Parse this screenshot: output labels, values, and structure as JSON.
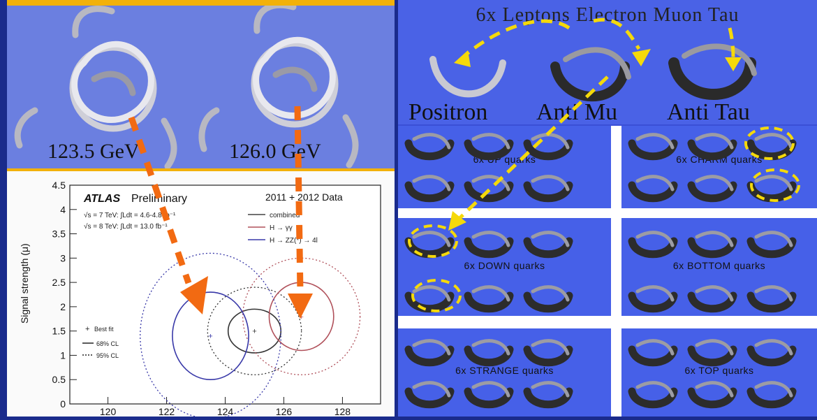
{
  "left_top": {
    "mass_left": "123.5 GeV",
    "mass_right": "126.0 GeV"
  },
  "plot": {
    "experiment": "ATLAS",
    "status": "Preliminary",
    "data_label": "2011 + 2012 Data",
    "lumi_line1_prefix": "√s = 7 TeV: ∫Ldt = ",
    "lumi_line1_value": "4.6-4.8 fb⁻¹",
    "lumi_line2_prefix": "√s = 8 TeV: ∫Ldt = ",
    "lumi_line2_value": "13.0 fb⁻¹",
    "legend_combined": "combined",
    "legend_gg": "H → γγ",
    "legend_zz": "H → ZZ(*) → 4l",
    "legend_bestfit": "Best fit",
    "legend_68": "68% CL",
    "legend_95": "95% CL",
    "ylabel": "Signal strength (μ)"
  },
  "chart_data": {
    "type": "scatter",
    "title": "",
    "xlabel": "",
    "ylabel": "Signal strength (μ)",
    "xlim": [
      118.7,
      129.3
    ],
    "ylim": [
      0,
      4.5
    ],
    "x_ticks": [
      120,
      122,
      124,
      126,
      128
    ],
    "y_ticks": [
      0,
      0.5,
      1,
      1.5,
      2,
      2.5,
      3,
      3.5,
      4,
      4.5
    ],
    "series": [
      {
        "name": "combined",
        "best_fit": [
          125.0,
          1.5
        ],
        "color": "#333333"
      },
      {
        "name": "H → γγ",
        "best_fit": [
          126.6,
          1.8
        ],
        "color": "#b0505a"
      },
      {
        "name": "H → ZZ(*) → 4l",
        "best_fit": [
          123.5,
          1.4
        ],
        "color": "#3838a8"
      }
    ],
    "grid": false,
    "legend": "top-right"
  },
  "right": {
    "banner": "6x Leptons Electron Muon Tau",
    "positron": "Positron",
    "anti_mu": "Anti Mu",
    "anti_tau": "Anti Tau",
    "up": "6x UP quarks",
    "charm": "6x CHARM quarks",
    "down": "6x DOWN quarks",
    "bottom": "6x BOTTOM quarks",
    "strange": "6x STRANGE quarks",
    "top": "6x TOP quarks"
  },
  "colors": {
    "accent_orange": "#f26a12",
    "highlight_yellow": "#f5d90a",
    "bar_yellow": "#f2b10a",
    "photo_blue": "#6b7fe0"
  }
}
